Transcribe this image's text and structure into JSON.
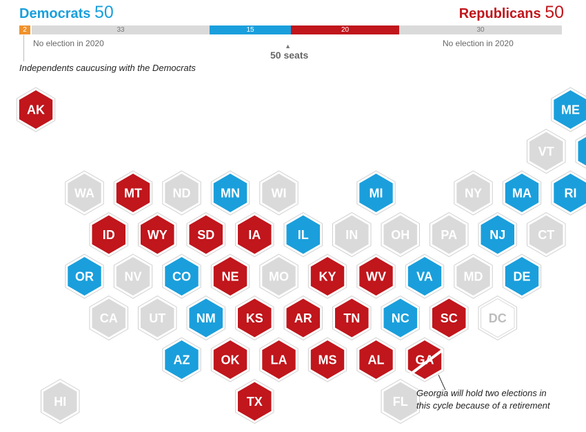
{
  "header": {
    "dem_label": "Democrats",
    "dem_count": "50",
    "rep_label": "Republicans",
    "rep_count": "50"
  },
  "bar_labels": {
    "ind": "2",
    "dem_no_election": "33",
    "dem_up": "15",
    "rep_up": "20",
    "rep_no_election": "30"
  },
  "notes": {
    "left_no_election": "No election in 2020",
    "right_no_election": "No election in 2020",
    "center": "50 seats",
    "independents": "Independents caucusing with the Democrats",
    "georgia_line1": "Georgia will hold two elections in",
    "georgia_line2": "this cycle because of a retirement"
  },
  "colors": {
    "dem": "#1a9fdc",
    "rep": "#c0161c",
    "none": "#dadada",
    "ind": "#f0922c",
    "dc_text": "#bdbdbd"
  },
  "chart_data": {
    "type": "table",
    "seat_bar": [
      {
        "group": "Independent",
        "seats": 2
      },
      {
        "group": "Democrat, no election",
        "seats": 33
      },
      {
        "group": "Democrat, up in 2020",
        "seats": 15
      },
      {
        "group": "Republican, up in 2020",
        "seats": 20
      },
      {
        "group": "Republican, no election",
        "seats": 30
      }
    ],
    "states": [
      {
        "abbr": "AK",
        "status": "rep",
        "row": 0,
        "col": 0
      },
      {
        "abbr": "ME",
        "status": "dem",
        "row": 0,
        "col": 11
      },
      {
        "abbr": "VT",
        "status": "none",
        "row": 1,
        "col": 10
      },
      {
        "abbr": "NH",
        "status": "dem",
        "row": 1,
        "col": 11
      },
      {
        "abbr": "WA",
        "status": "none",
        "row": 2,
        "col": 1
      },
      {
        "abbr": "MT",
        "status": "rep",
        "row": 2,
        "col": 2
      },
      {
        "abbr": "ND",
        "status": "none",
        "row": 2,
        "col": 3
      },
      {
        "abbr": "MN",
        "status": "dem",
        "row": 2,
        "col": 4
      },
      {
        "abbr": "WI",
        "status": "none",
        "row": 2,
        "col": 5
      },
      {
        "abbr": "MI",
        "status": "dem",
        "row": 2,
        "col": 7
      },
      {
        "abbr": "NY",
        "status": "none",
        "row": 2,
        "col": 9
      },
      {
        "abbr": "MA",
        "status": "dem",
        "row": 2,
        "col": 10
      },
      {
        "abbr": "RI",
        "status": "dem",
        "row": 2,
        "col": 11
      },
      {
        "abbr": "ID",
        "status": "rep",
        "row": 3,
        "col": 1
      },
      {
        "abbr": "WY",
        "status": "rep",
        "row": 3,
        "col": 2
      },
      {
        "abbr": "SD",
        "status": "rep",
        "row": 3,
        "col": 3
      },
      {
        "abbr": "IA",
        "status": "rep",
        "row": 3,
        "col": 4
      },
      {
        "abbr": "IL",
        "status": "dem",
        "row": 3,
        "col": 5
      },
      {
        "abbr": "IN",
        "status": "none",
        "row": 3,
        "col": 6
      },
      {
        "abbr": "OH",
        "status": "none",
        "row": 3,
        "col": 7
      },
      {
        "abbr": "PA",
        "status": "none",
        "row": 3,
        "col": 8
      },
      {
        "abbr": "NJ",
        "status": "dem",
        "row": 3,
        "col": 9
      },
      {
        "abbr": "CT",
        "status": "none",
        "row": 3,
        "col": 10
      },
      {
        "abbr": "OR",
        "status": "dem",
        "row": 4,
        "col": 1
      },
      {
        "abbr": "NV",
        "status": "none",
        "row": 4,
        "col": 2
      },
      {
        "abbr": "CO",
        "status": "dem",
        "row": 4,
        "col": 3
      },
      {
        "abbr": "NE",
        "status": "rep",
        "row": 4,
        "col": 4
      },
      {
        "abbr": "MO",
        "status": "none",
        "row": 4,
        "col": 5
      },
      {
        "abbr": "KY",
        "status": "rep",
        "row": 4,
        "col": 6
      },
      {
        "abbr": "WV",
        "status": "rep",
        "row": 4,
        "col": 7
      },
      {
        "abbr": "VA",
        "status": "dem",
        "row": 4,
        "col": 8
      },
      {
        "abbr": "MD",
        "status": "none",
        "row": 4,
        "col": 9
      },
      {
        "abbr": "DE",
        "status": "dem",
        "row": 4,
        "col": 10
      },
      {
        "abbr": "CA",
        "status": "none",
        "row": 5,
        "col": 1
      },
      {
        "abbr": "UT",
        "status": "none",
        "row": 5,
        "col": 2
      },
      {
        "abbr": "NM",
        "status": "dem",
        "row": 5,
        "col": 3
      },
      {
        "abbr": "KS",
        "status": "rep",
        "row": 5,
        "col": 4
      },
      {
        "abbr": "AR",
        "status": "rep",
        "row": 5,
        "col": 5
      },
      {
        "abbr": "TN",
        "status": "rep",
        "row": 5,
        "col": 6
      },
      {
        "abbr": "NC",
        "status": "dem",
        "row": 5,
        "col": 7
      },
      {
        "abbr": "SC",
        "status": "rep",
        "row": 5,
        "col": 8
      },
      {
        "abbr": "DC",
        "status": "dc",
        "row": 5,
        "col": 9
      },
      {
        "abbr": "AZ",
        "status": "dem",
        "row": 6,
        "col": 3
      },
      {
        "abbr": "OK",
        "status": "rep",
        "row": 6,
        "col": 4
      },
      {
        "abbr": "LA",
        "status": "rep",
        "row": 6,
        "col": 5
      },
      {
        "abbr": "MS",
        "status": "rep",
        "row": 6,
        "col": 6
      },
      {
        "abbr": "AL",
        "status": "rep",
        "row": 6,
        "col": 7
      },
      {
        "abbr": "GA",
        "status": "rep",
        "row": 6,
        "col": 8,
        "split": true
      },
      {
        "abbr": "HI",
        "status": "none",
        "row": 7,
        "col": 0
      },
      {
        "abbr": "TX",
        "status": "rep",
        "row": 7,
        "col": 4
      },
      {
        "abbr": "FL",
        "status": "none",
        "row": 7,
        "col": 7
      }
    ]
  }
}
